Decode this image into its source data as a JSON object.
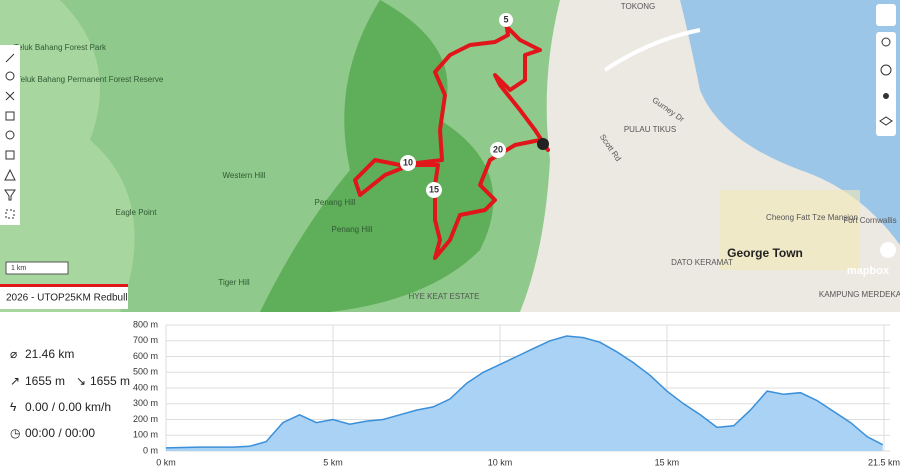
{
  "map": {
    "places": [
      "TOKONG",
      "Teluk Bahang Forest Park",
      "Teluk Bahang Permanent Forest Reserve",
      "Western Hill",
      "Eagle Point",
      "Tiger Hill",
      "Penang Hill",
      "Penang Hill",
      "PULAU TIKUS",
      "Gurney Dr",
      "Scott Rd",
      "George Town",
      "Cheong Fatt Tze Mansion",
      "Fort Cornwallis",
      "DATO KERAMAT",
      "KAMPUNG MERDEKA",
      "HYE KEAT ESTATE"
    ],
    "route_markers": [
      "5",
      "10",
      "15",
      "20"
    ],
    "scale": "1 km",
    "attribution": "mapbox"
  },
  "route": {
    "name": "2026 - UTOP25KM Redbull",
    "distance": "21.46 km",
    "ascent": "1655 m",
    "descent": "1655 m",
    "speed": "0.00 / 0.00 km/h",
    "time": "00:00 / 00:00"
  },
  "chart_data": {
    "type": "area",
    "color": "#3a8fd9",
    "fill": "#a9d2f4",
    "x": [
      0,
      1,
      2,
      2.5,
      3,
      3.5,
      4,
      4.5,
      5,
      5.5,
      6,
      6.5,
      7,
      7.5,
      8,
      8.5,
      9,
      9.5,
      10,
      10.5,
      11,
      11.5,
      12,
      12.5,
      13,
      13.5,
      14,
      14.5,
      15,
      15.5,
      16,
      16.5,
      17,
      17.5,
      18,
      18.5,
      19,
      19.5,
      20,
      20.5,
      21,
      21.46
    ],
    "values": [
      20,
      25,
      25,
      30,
      60,
      180,
      230,
      180,
      200,
      170,
      190,
      200,
      230,
      260,
      280,
      330,
      430,
      500,
      550,
      600,
      650,
      700,
      730,
      720,
      690,
      630,
      560,
      480,
      380,
      300,
      230,
      150,
      160,
      260,
      380,
      360,
      370,
      320,
      250,
      180,
      90,
      40
    ],
    "xlim": [
      0,
      21.5
    ],
    "ylim": [
      0,
      800
    ],
    "xticks": [
      {
        "value": 0,
        "label": "0 km"
      },
      {
        "value": 5,
        "label": "5 km"
      },
      {
        "value": 10,
        "label": "10 km"
      },
      {
        "value": 15,
        "label": "15 km"
      },
      {
        "value": 21.5,
        "label": "21.5 km"
      }
    ],
    "yticks": [
      {
        "value": 0,
        "label": "0 m"
      },
      {
        "value": 100,
        "label": "100 m"
      },
      {
        "value": 200,
        "label": "200 m"
      },
      {
        "value": 300,
        "label": "300 m"
      },
      {
        "value": 400,
        "label": "400 m"
      },
      {
        "value": 500,
        "label": "500 m"
      },
      {
        "value": 600,
        "label": "600 m"
      },
      {
        "value": 700,
        "label": "700 m"
      },
      {
        "value": 800,
        "label": "800 m"
      }
    ],
    "grid": true
  }
}
